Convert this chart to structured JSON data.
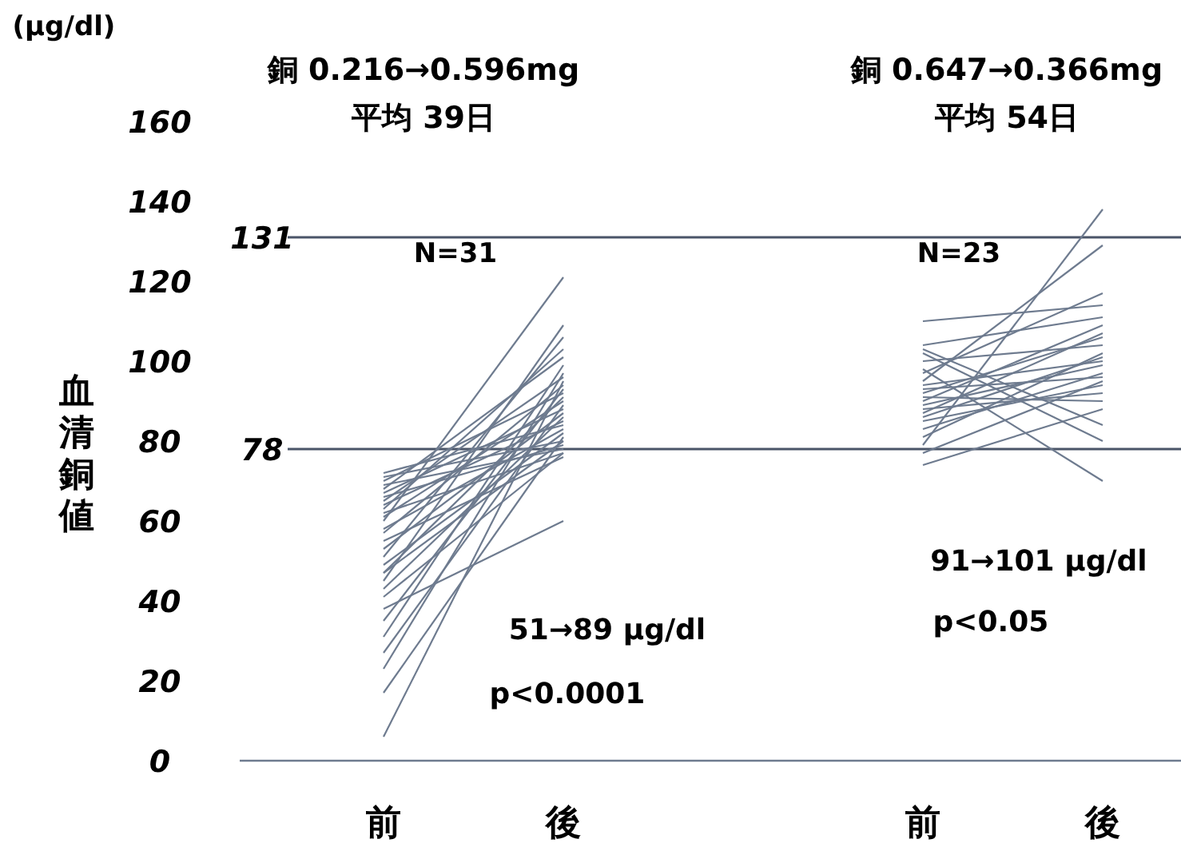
{
  "chart_data": {
    "type": "line",
    "ylabel": "血清銅値",
    "ylim": [
      0,
      160
    ],
    "yticks": [
      0,
      20,
      40,
      60,
      80,
      100,
      120,
      140,
      160
    ],
    "categories": [
      "前",
      "後",
      null,
      "前",
      "後"
    ],
    "ref_lines": [
      {
        "axis": "y",
        "value": 78,
        "label": "78",
        "color": "#4a5568"
      },
      {
        "axis": "y",
        "value": 131,
        "label": "131",
        "color": "#4a5568"
      }
    ],
    "annotations": [
      "(μg/dl)",
      "銅 0.216→0.596mg",
      "平均 39日",
      "N=31",
      "51→89 μg/dl",
      "p<0.0001",
      "銅 0.647→0.366mg",
      "平均 54日",
      "N=23",
      "91→101 μg/dl",
      "p<0.05"
    ],
    "series": [
      {
        "color": "#6e7b8f",
        "values": [
          72,
          84,
          null,
          null,
          null
        ]
      },
      {
        "color": "#6e7b8f",
        "values": [
          71,
          80,
          null,
          null,
          null
        ]
      },
      {
        "color": "#6e7b8f",
        "values": [
          70,
          92,
          null,
          null,
          null
        ]
      },
      {
        "color": "#6e7b8f",
        "values": [
          69,
          78,
          null,
          null,
          null
        ]
      },
      {
        "color": "#6e7b8f",
        "values": [
          68,
          101,
          null,
          null,
          null
        ]
      },
      {
        "color": "#6e7b8f",
        "values": [
          67,
          88,
          null,
          null,
          null
        ]
      },
      {
        "color": "#6e7b8f",
        "values": [
          66,
          79,
          null,
          null,
          null
        ]
      },
      {
        "color": "#6e7b8f",
        "values": [
          65,
          96,
          null,
          null,
          null
        ]
      },
      {
        "color": "#6e7b8f",
        "values": [
          64,
          85,
          null,
          null,
          null
        ]
      },
      {
        "color": "#6e7b8f",
        "values": [
          63,
          103,
          null,
          null,
          null
        ]
      },
      {
        "color": "#6e7b8f",
        "values": [
          62,
          77,
          null,
          null,
          null
        ]
      },
      {
        "color": "#6e7b8f",
        "values": [
          61,
          90,
          null,
          null,
          null
        ]
      },
      {
        "color": "#6e7b8f",
        "values": [
          60,
          121,
          null,
          null,
          null
        ]
      },
      {
        "color": "#6e7b8f",
        "values": [
          58,
          83,
          null,
          null,
          null
        ]
      },
      {
        "color": "#6e7b8f",
        "values": [
          57,
          94,
          null,
          null,
          null
        ]
      },
      {
        "color": "#6e7b8f",
        "values": [
          55,
          76,
          null,
          null,
          null
        ]
      },
      {
        "color": "#6e7b8f",
        "values": [
          53,
          87,
          null,
          null,
          null
        ]
      },
      {
        "color": "#6e7b8f",
        "values": [
          51,
          106,
          null,
          null,
          null
        ]
      },
      {
        "color": "#6e7b8f",
        "values": [
          49,
          82,
          null,
          null,
          null
        ]
      },
      {
        "color": "#6e7b8f",
        "values": [
          47,
          91,
          null,
          null,
          null
        ]
      },
      {
        "color": "#6e7b8f",
        "values": [
          47,
          80,
          null,
          null,
          null
        ]
      },
      {
        "color": "#6e7b8f",
        "values": [
          45,
          109,
          null,
          null,
          null
        ]
      },
      {
        "color": "#6e7b8f",
        "values": [
          43,
          86,
          null,
          null,
          null
        ]
      },
      {
        "color": "#6e7b8f",
        "values": [
          41,
          77,
          null,
          null,
          null
        ]
      },
      {
        "color": "#6e7b8f",
        "values": [
          38,
          60,
          null,
          null,
          null
        ]
      },
      {
        "color": "#6e7b8f",
        "values": [
          35,
          93,
          null,
          null,
          null
        ]
      },
      {
        "color": "#6e7b8f",
        "values": [
          31,
          99,
          null,
          null,
          null
        ]
      },
      {
        "color": "#6e7b8f",
        "values": [
          27,
          89,
          null,
          null,
          null
        ]
      },
      {
        "color": "#6e7b8f",
        "values": [
          23,
          97,
          null,
          null,
          null
        ]
      },
      {
        "color": "#6e7b8f",
        "values": [
          17,
          81,
          null,
          null,
          null
        ]
      },
      {
        "color": "#6e7b8f",
        "values": [
          6,
          95,
          null,
          null,
          null
        ]
      },
      {
        "color": "#6e7b8f",
        "values": [
          null,
          null,
          null,
          110,
          114
        ]
      },
      {
        "color": "#6e7b8f",
        "values": [
          null,
          null,
          null,
          104,
          111
        ]
      },
      {
        "color": "#6e7b8f",
        "values": [
          null,
          null,
          null,
          103,
          84
        ]
      },
      {
        "color": "#6e7b8f",
        "values": [
          null,
          null,
          null,
          102,
          80
        ]
      },
      {
        "color": "#6e7b8f",
        "values": [
          null,
          null,
          null,
          100,
          104
        ]
      },
      {
        "color": "#6e7b8f",
        "values": [
          null,
          null,
          null,
          98,
          70
        ]
      },
      {
        "color": "#6e7b8f",
        "values": [
          null,
          null,
          null,
          97,
          117
        ]
      },
      {
        "color": "#6e7b8f",
        "values": [
          null,
          null,
          null,
          95,
          129
        ]
      },
      {
        "color": "#6e7b8f",
        "values": [
          null,
          null,
          null,
          94,
          100
        ]
      },
      {
        "color": "#6e7b8f",
        "values": [
          null,
          null,
          null,
          93,
          96
        ]
      },
      {
        "color": "#6e7b8f",
        "values": [
          null,
          null,
          null,
          92,
          106
        ]
      },
      {
        "color": "#6e7b8f",
        "values": [
          null,
          null,
          null,
          91,
          90
        ]
      },
      {
        "color": "#6e7b8f",
        "values": [
          null,
          null,
          null,
          90,
          109
        ]
      },
      {
        "color": "#6e7b8f",
        "values": [
          null,
          null,
          null,
          89,
          99
        ]
      },
      {
        "color": "#6e7b8f",
        "values": [
          null,
          null,
          null,
          88,
          92
        ]
      },
      {
        "color": "#6e7b8f",
        "values": [
          null,
          null,
          null,
          87,
          107
        ]
      },
      {
        "color": "#6e7b8f",
        "values": [
          null,
          null,
          null,
          86,
          101
        ]
      },
      {
        "color": "#6e7b8f",
        "values": [
          null,
          null,
          null,
          85,
          94
        ]
      },
      {
        "color": "#6e7b8f",
        "values": [
          null,
          null,
          null,
          83,
          97
        ]
      },
      {
        "color": "#6e7b8f",
        "values": [
          null,
          null,
          null,
          81,
          102
        ]
      },
      {
        "color": "#6e7b8f",
        "values": [
          null,
          null,
          null,
          79,
          138
        ]
      },
      {
        "color": "#6e7b8f",
        "values": [
          null,
          null,
          null,
          77,
          95
        ]
      },
      {
        "color": "#6e7b8f",
        "values": [
          null,
          null,
          null,
          74,
          88
        ]
      }
    ]
  }
}
